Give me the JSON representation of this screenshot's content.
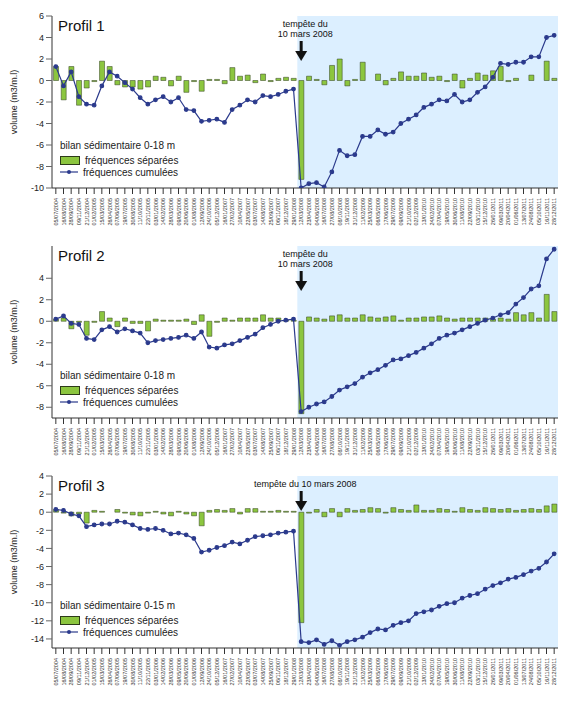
{
  "chart_data": [
    {
      "type": "bar_line",
      "title": "Profil 1",
      "subtitle": "bilan sédimentaire 0-18 m",
      "y_label": "volume (m3/m.l)",
      "annotation": {
        "text": "tempête du\n10 mars 2008",
        "x": "12/03/2008"
      },
      "categories": [
        "05/07/2004",
        "16/08/2004",
        "28/09/2004",
        "09/11/2004",
        "21/12/2004",
        "01/02/2005",
        "15/03/2005",
        "26/04/2005",
        "07/06/2005",
        "19/07/2005",
        "30/08/2005",
        "11/10/2005",
        "22/11/2005",
        "03/01/2006",
        "14/02/2006",
        "28/03/2006",
        "09/05/2006",
        "20/06/2006",
        "01/08/2006",
        "12/09/2006",
        "24/10/2006",
        "05/12/2006",
        "16/01/2007",
        "27/02/2007",
        "10/04/2007",
        "22/05/2007",
        "03/07/2007",
        "14/08/2007",
        "25/09/2007",
        "06/11/2007",
        "18/12/2007",
        "29/01/2008",
        "12/03/2008",
        "23/04/2008",
        "04/06/2008",
        "16/07/2008",
        "27/08/2008",
        "08/10/2008",
        "19/11/2008",
        "31/12/2008",
        "11/02/2009",
        "25/03/2009",
        "06/05/2009",
        "17/06/2009",
        "29/07/2009",
        "09/09/2009",
        "21/10/2009",
        "02/12/2009",
        "13/01/2010",
        "24/02/2010",
        "07/04/2010",
        "19/05/2010",
        "30/06/2010",
        "11/08/2010",
        "22/09/2010",
        "03/11/2010",
        "15/12/2010",
        "26/01/2011",
        "09/03/2011",
        "20/04/2011",
        "01/06/2011",
        "13/07/2011",
        "24/08/2011",
        "05/10/2011",
        "16/11/2011",
        "28/12/2011"
      ],
      "series": [
        {
          "name": "fréquences séparées",
          "type": "bar",
          "color": "#8cc63f",
          "values": [
            1.3,
            -1.8,
            1.3,
            -2.3,
            -0.7,
            -0.1,
            1.8,
            1.3,
            -0.4,
            -0.6,
            -0.6,
            -0.8,
            -0.6,
            0.4,
            0.3,
            -0.5,
            0.4,
            -1.1,
            -0.1,
            -1.0,
            0.1,
            0.1,
            -0.3,
            1.2,
            0.4,
            0.5,
            -0.2,
            0.6,
            -0.1,
            0.2,
            0.3,
            0.2,
            -9.2,
            0.4,
            0.1,
            -0.4,
            1.4,
            2.0,
            -0.5,
            0.1,
            1.7,
            0.0,
            0.6,
            -0.4,
            0.2,
            0.8,
            0.4,
            0.4,
            0.7,
            0.3,
            0.4,
            -0.1,
            0.6,
            -0.7,
            0.2,
            0.7,
            0.5,
            0.9,
            1.3,
            -0.1,
            0.2,
            0.0,
            0.5,
            0.0,
            1.8,
            0.2
          ]
        },
        {
          "name": "fréquences cumulées",
          "type": "line",
          "color": "#2b3a8c",
          "marker": "circle",
          "values": [
            1.3,
            -0.5,
            0.8,
            -1.5,
            -2.2,
            -2.3,
            -0.5,
            0.8,
            0.4,
            -0.2,
            -0.8,
            -1.6,
            -2.2,
            -1.8,
            -1.5,
            -2.0,
            -1.6,
            -2.7,
            -2.8,
            -3.8,
            -3.7,
            -3.6,
            -3.9,
            -2.7,
            -2.3,
            -1.8,
            -2.0,
            -1.4,
            -1.5,
            -1.3,
            -1.0,
            -0.8,
            -10.0,
            -9.6,
            -9.5,
            -9.9,
            -8.5,
            -6.5,
            -7.0,
            -6.9,
            -5.2,
            -5.2,
            -4.6,
            -5.0,
            -4.8,
            -4.0,
            -3.6,
            -3.2,
            -2.5,
            -2.2,
            -1.8,
            -1.9,
            -1.3,
            -2.0,
            -1.8,
            -1.1,
            -0.6,
            0.3,
            1.6,
            1.5,
            1.7,
            1.7,
            2.2,
            2.2,
            4.0,
            4.2
          ]
        }
      ],
      "ylim": [
        -10,
        6
      ],
      "yticks": [
        -10,
        -8,
        -6,
        -4,
        -2,
        0,
        2,
        4,
        6
      ],
      "grid": false,
      "legend": "bottom-left"
    },
    {
      "type": "bar_line",
      "title": "Profil 2",
      "subtitle": "bilan sédimentaire 0-18 m",
      "y_label": "volume (m3/m.l)",
      "annotation": {
        "text": "tempête du\n10 mars 2008",
        "x": "12/03/2008"
      },
      "categories": [
        "05/07/2004",
        "16/08/2004",
        "28/09/2004",
        "09/11/2004",
        "21/12/2004",
        "01/02/2005",
        "15/03/2005",
        "26/04/2005",
        "07/06/2005",
        "19/07/2005",
        "30/08/2005",
        "11/10/2005",
        "22/11/2005",
        "03/01/2006",
        "14/02/2006",
        "28/03/2006",
        "09/05/2006",
        "20/06/2006",
        "01/08/2006",
        "12/09/2006",
        "24/10/2006",
        "05/12/2006",
        "16/01/2007",
        "27/02/2007",
        "10/04/2007",
        "22/05/2007",
        "03/07/2007",
        "14/08/2007",
        "25/09/2007",
        "06/11/2007",
        "18/12/2007",
        "29/01/2008",
        "12/03/2008",
        "23/04/2008",
        "04/06/2008",
        "16/07/2008",
        "27/08/2008",
        "08/10/2008",
        "19/11/2008",
        "31/12/2008",
        "11/02/2009",
        "25/03/2009",
        "06/05/2009",
        "17/06/2009",
        "29/07/2009",
        "09/09/2009",
        "21/10/2009",
        "02/12/2009",
        "13/01/2010",
        "24/02/2010",
        "07/04/2010",
        "19/05/2010",
        "30/06/2010",
        "11/08/2010",
        "22/09/2010",
        "03/11/2010",
        "15/12/2010",
        "26/01/2011",
        "09/03/2011",
        "20/04/2011",
        "01/06/2011",
        "13/07/2011",
        "24/08/2011",
        "05/10/2011",
        "16/11/2011",
        "28/12/2011"
      ],
      "series": [
        {
          "name": "fréquences séparées",
          "type": "bar",
          "color": "#8cc63f",
          "values": [
            0.2,
            0.3,
            -0.7,
            -0.1,
            -1.3,
            -0.1,
            0.9,
            0.3,
            -0.5,
            0.3,
            -0.2,
            -0.2,
            -0.9,
            0.2,
            0.1,
            0.1,
            0.1,
            0.2,
            -0.3,
            0.6,
            -1.4,
            -0.1,
            0.3,
            0.1,
            0.3,
            0.3,
            0.3,
            0.6,
            0.3,
            0.3,
            0.1,
            0.1,
            -8.6,
            0.4,
            0.3,
            0.2,
            0.5,
            0.6,
            0.3,
            0.3,
            0.6,
            0.4,
            0.3,
            0.4,
            0.5,
            0.1,
            0.3,
            0.3,
            0.4,
            0.4,
            0.5,
            0.3,
            0.2,
            0.3,
            0.3,
            0.3,
            0.3,
            0.2,
            0.3,
            0.2,
            0.8,
            0.6,
            0.8,
            0.3,
            2.5,
            0.9
          ]
        },
        {
          "name": "fréquences cumulées",
          "type": "line",
          "color": "#2b3a8c",
          "marker": "circle",
          "values": [
            0.2,
            0.5,
            -0.2,
            -0.3,
            -1.6,
            -1.7,
            -0.8,
            -0.5,
            -1.0,
            -0.7,
            -0.9,
            -1.1,
            -2.0,
            -1.8,
            -1.7,
            -1.6,
            -1.5,
            -1.3,
            -1.6,
            -1.0,
            -2.4,
            -2.5,
            -2.2,
            -2.1,
            -1.8,
            -1.5,
            -1.2,
            -0.6,
            -0.3,
            0.0,
            0.1,
            0.2,
            -8.4,
            -8.0,
            -7.7,
            -7.5,
            -7.0,
            -6.4,
            -6.1,
            -5.8,
            -5.2,
            -4.8,
            -4.5,
            -4.1,
            -3.6,
            -3.5,
            -3.2,
            -2.9,
            -2.5,
            -2.1,
            -1.6,
            -1.3,
            -1.1,
            -0.8,
            -0.5,
            -0.2,
            0.1,
            0.3,
            0.6,
            0.8,
            1.6,
            2.2,
            3.0,
            3.3,
            5.8,
            6.7
          ]
        }
      ],
      "ylim": [
        -9,
        7
      ],
      "yticks": [
        -8,
        -6,
        -4,
        -2,
        0,
        2,
        4
      ],
      "grid": false,
      "legend": "bottom-left"
    },
    {
      "type": "bar_line",
      "title": "Profil 3",
      "subtitle": "bilan sédimentaire 0-15 m",
      "y_label": "volume (m3/m.l)",
      "annotation": {
        "text": "tempête du 10 mars 2008",
        "x": "12/03/2008"
      },
      "categories": [
        "05/07/2004",
        "16/08/2004",
        "28/09/2004",
        "09/11/2004",
        "21/12/2004",
        "01/02/2005",
        "15/03/2005",
        "26/04/2005",
        "07/06/2005",
        "19/07/2005",
        "30/08/2005",
        "11/10/2005",
        "22/11/2005",
        "03/01/2006",
        "14/02/2006",
        "28/03/2006",
        "09/05/2006",
        "20/06/2006",
        "01/08/2006",
        "12/09/2006",
        "24/10/2006",
        "05/12/2006",
        "16/01/2007",
        "27/02/2007",
        "10/04/2007",
        "22/05/2007",
        "03/07/2007",
        "14/08/2007",
        "25/09/2007",
        "06/11/2007",
        "18/12/2007",
        "29/01/2008",
        "12/03/2008",
        "23/04/2008",
        "04/06/2008",
        "16/07/2008",
        "27/08/2008",
        "08/10/2008",
        "19/11/2008",
        "31/12/2008",
        "11/02/2009",
        "25/03/2009",
        "06/05/2009",
        "17/06/2009",
        "29/07/2009",
        "09/09/2009",
        "21/10/2009",
        "02/12/2009",
        "13/01/2010",
        "24/02/2010",
        "07/04/2010",
        "19/05/2010",
        "30/06/2010",
        "11/08/2010",
        "22/09/2010",
        "03/11/2010",
        "15/12/2010",
        "26/01/2011",
        "09/03/2011",
        "20/04/2011",
        "01/06/2011",
        "13/07/2011",
        "24/08/2011",
        "05/10/2011",
        "16/11/2011",
        "28/12/2011"
      ],
      "series": [
        {
          "name": "fréquences séparées",
          "type": "bar",
          "color": "#8cc63f",
          "values": [
            0.3,
            -0.1,
            -0.4,
            -0.2,
            -1.2,
            0.2,
            0.1,
            0.0,
            0.3,
            -0.1,
            -0.3,
            -0.4,
            -0.1,
            0.1,
            -0.2,
            -0.4,
            0.1,
            -0.2,
            -0.4,
            -1.5,
            0.2,
            0.3,
            0.2,
            0.4,
            -0.2,
            0.4,
            0.4,
            0.1,
            0.1,
            0.2,
            0.1,
            0.1,
            -12.2,
            -0.1,
            0.3,
            -0.5,
            0.4,
            -0.5,
            0.4,
            0.2,
            0.3,
            0.5,
            0.4,
            -0.1,
            0.5,
            0.3,
            0.2,
            0.8,
            0.2,
            0.2,
            0.4,
            0.3,
            0.1,
            0.5,
            0.3,
            0.2,
            0.5,
            0.4,
            0.3,
            0.4,
            0.2,
            0.3,
            0.4,
            0.3,
            0.7,
            0.9
          ]
        },
        {
          "name": "fréquences cumulées",
          "type": "line",
          "color": "#2b3a8c",
          "marker": "circle",
          "values": [
            0.3,
            0.2,
            -0.2,
            -0.4,
            -1.6,
            -1.4,
            -1.3,
            -1.3,
            -1.0,
            -1.1,
            -1.4,
            -1.8,
            -1.9,
            -1.8,
            -2.0,
            -2.4,
            -2.3,
            -2.5,
            -2.9,
            -4.4,
            -4.2,
            -3.9,
            -3.7,
            -3.3,
            -3.5,
            -3.1,
            -2.7,
            -2.6,
            -2.5,
            -2.3,
            -2.2,
            -2.1,
            -14.3,
            -14.4,
            -14.1,
            -14.6,
            -14.2,
            -14.7,
            -14.3,
            -14.1,
            -13.8,
            -13.3,
            -12.9,
            -13.0,
            -12.5,
            -12.2,
            -12.0,
            -11.2,
            -11.0,
            -10.8,
            -10.4,
            -10.1,
            -10.0,
            -9.5,
            -9.2,
            -9.0,
            -8.5,
            -8.1,
            -7.8,
            -7.4,
            -7.2,
            -6.9,
            -6.5,
            -6.2,
            -5.5,
            -4.6
          ]
        }
      ],
      "ylim": [
        -15,
        4
      ],
      "yticks": [
        -14,
        -12,
        -10,
        -8,
        -6,
        -4,
        -2,
        0,
        2,
        4
      ],
      "grid": false,
      "legend": "bottom-left"
    }
  ]
}
